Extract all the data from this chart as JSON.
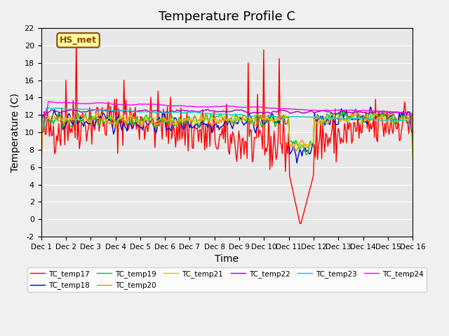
{
  "title": "Temperature Profile C",
  "xlabel": "Time",
  "ylabel": "Temperature (C)",
  "ylim": [
    -2,
    22
  ],
  "xlim": [
    0,
    15
  ],
  "xtick_labels": [
    "Dec 1",
    "Dec 2",
    "Dec 3",
    "Dec 4",
    "Dec 5",
    "Dec 6",
    "Dec 7",
    "Dec 8",
    "Dec 9",
    "Dec 10",
    "Dec 11",
    "Dec 12",
    "Dec 13",
    "Dec 14",
    "Dec 15",
    "Dec 16"
  ],
  "annotation_text": "HS_met",
  "annotation_color": "#8B4513",
  "annotation_bg": "#FFFF99",
  "series_colors": {
    "TC_temp17": "#FF0000",
    "TC_temp18": "#0000CC",
    "TC_temp19": "#00CC00",
    "TC_temp20": "#FF8800",
    "TC_temp21": "#CCCC00",
    "TC_temp22": "#AA00AA",
    "TC_temp23": "#00CCCC",
    "TC_temp24": "#FF00FF"
  },
  "bg_color": "#E8E8E8",
  "grid_color": "#FFFFFF",
  "title_fontsize": 13,
  "axis_fontsize": 10
}
